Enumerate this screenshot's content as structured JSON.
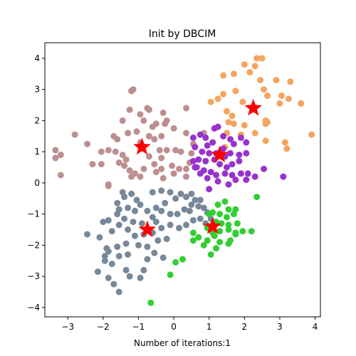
{
  "chart_data": {
    "type": "scatter",
    "title": "Init by DBCIM",
    "xlabel": "Number of iterations:1",
    "ylabel": "",
    "xlim": [
      -3.65,
      4.15
    ],
    "ylim": [
      -4.3,
      4.5
    ],
    "xticks": [
      -3,
      -2,
      -1,
      0,
      1,
      2,
      3,
      4
    ],
    "yticks": [
      -4,
      -3,
      -2,
      -1,
      0,
      1,
      2,
      3,
      4
    ],
    "grid": false,
    "legend": "none",
    "series": [
      {
        "color": "#f4a460",
        "points": [
          [
            2.0,
            3.8
          ],
          [
            2.35,
            4.0
          ],
          [
            2.5,
            4.0
          ],
          [
            1.4,
            3.45
          ],
          [
            1.7,
            3.5
          ],
          [
            2.15,
            3.55
          ],
          [
            2.3,
            3.75
          ],
          [
            2.45,
            3.3
          ],
          [
            2.55,
            3.0
          ],
          [
            2.9,
            3.3
          ],
          [
            3.3,
            3.25
          ],
          [
            1.75,
            2.95
          ],
          [
            1.4,
            2.85
          ],
          [
            1.95,
            2.6
          ],
          [
            2.65,
            2.8
          ],
          [
            3.05,
            2.8
          ],
          [
            3.25,
            2.7
          ],
          [
            3.0,
            2.55
          ],
          [
            3.6,
            2.55
          ],
          [
            1.25,
            2.7
          ],
          [
            1.05,
            2.6
          ],
          [
            1.5,
            2.3
          ],
          [
            1.65,
            2.15
          ],
          [
            1.55,
            1.95
          ],
          [
            1.7,
            1.9
          ],
          [
            1.5,
            1.6
          ],
          [
            2.0,
            1.85
          ],
          [
            1.9,
            1.55
          ],
          [
            2.3,
            1.6
          ],
          [
            2.6,
            1.9
          ],
          [
            2.6,
            2.0
          ],
          [
            2.65,
            1.95
          ],
          [
            1.45,
            1.15
          ],
          [
            2.6,
            1.35
          ],
          [
            3.15,
            1.3
          ],
          [
            3.2,
            1.1
          ],
          [
            3.9,
            1.55
          ]
        ]
      },
      {
        "color": "#bc8f8f",
        "points": [
          [
            -1.2,
            2.95
          ],
          [
            -1.15,
            3.0
          ],
          [
            -1.25,
            2.35
          ],
          [
            -0.7,
            2.35
          ],
          [
            -0.75,
            2.4
          ],
          [
            -0.3,
            2.25
          ],
          [
            0.35,
            2.4
          ],
          [
            -0.95,
            2.2
          ],
          [
            -0.2,
            2.0
          ],
          [
            -0.5,
            1.9
          ],
          [
            -0.85,
            2.0
          ],
          [
            -0.6,
            1.8
          ],
          [
            -1.05,
            1.65
          ],
          [
            -1.45,
            2.0
          ],
          [
            -1.7,
            1.5
          ],
          [
            -1.3,
            1.6
          ],
          [
            -1.6,
            1.4
          ],
          [
            -0.95,
            1.3
          ],
          [
            -0.7,
            1.5
          ],
          [
            -0.55,
            1.4
          ],
          [
            -0.35,
            1.5
          ],
          [
            -0.25,
            1.9
          ],
          [
            0.0,
            1.75
          ],
          [
            -2.8,
            1.55
          ],
          [
            -3.35,
            1.05
          ],
          [
            -2.45,
            1.25
          ],
          [
            -3.2,
            0.9
          ],
          [
            -3.35,
            0.8
          ],
          [
            -2.05,
            1.0
          ],
          [
            -1.85,
            1.05
          ],
          [
            -1.65,
            1.0
          ],
          [
            -1.45,
            0.9
          ],
          [
            -1.35,
            0.75
          ],
          [
            -1.55,
            0.65
          ],
          [
            -1.4,
            0.55
          ],
          [
            -1.25,
            0.4
          ],
          [
            -1.1,
            0.3
          ],
          [
            -0.95,
            0.2
          ],
          [
            -0.85,
            0.45
          ],
          [
            -0.55,
            0.6
          ],
          [
            -0.7,
            0.85
          ],
          [
            -0.4,
            1.05
          ],
          [
            -0.2,
            1.05
          ],
          [
            0.05,
            1.05
          ],
          [
            0.2,
            1.0
          ],
          [
            -0.35,
            0.8
          ],
          [
            -0.5,
            0.35
          ],
          [
            -0.3,
            0.15
          ],
          [
            -0.35,
            0.45
          ],
          [
            -0.05,
            0.55
          ],
          [
            0.0,
            0.3
          ],
          [
            0.15,
            0.45
          ],
          [
            0.35,
            0.45
          ],
          [
            0.45,
            0.65
          ],
          [
            0.5,
            0.95
          ],
          [
            0.55,
            1.25
          ],
          [
            0.35,
            1.6
          ],
          [
            0.85,
            1.6
          ],
          [
            -2.3,
            0.6
          ],
          [
            -2.05,
            0.6
          ],
          [
            -3.2,
            0.25
          ],
          [
            -1.2,
            0.2
          ],
          [
            -1.85,
            -0.05
          ],
          [
            -1.85,
            -0.1
          ],
          [
            0.35,
            0.2
          ]
        ]
      },
      {
        "color": "#9932cc",
        "points": [
          [
            0.55,
            1.45
          ],
          [
            0.75,
            1.55
          ],
          [
            0.9,
            1.45
          ],
          [
            1.15,
            1.75
          ],
          [
            1.25,
            1.8
          ],
          [
            0.95,
            1.2
          ],
          [
            1.1,
            1.3
          ],
          [
            1.4,
            1.5
          ],
          [
            1.6,
            1.4
          ],
          [
            1.7,
            1.25
          ],
          [
            1.9,
            1.45
          ],
          [
            2.05,
            1.3
          ],
          [
            0.6,
            1.15
          ],
          [
            0.8,
            1.0
          ],
          [
            1.0,
            0.95
          ],
          [
            1.2,
            0.95
          ],
          [
            1.45,
            0.85
          ],
          [
            1.6,
            0.95
          ],
          [
            1.85,
            0.9
          ],
          [
            2.05,
            0.95
          ],
          [
            0.55,
            0.7
          ],
          [
            0.7,
            0.75
          ],
          [
            0.9,
            0.7
          ],
          [
            1.15,
            0.75
          ],
          [
            1.3,
            0.6
          ],
          [
            1.5,
            0.5
          ],
          [
            1.65,
            0.6
          ],
          [
            1.85,
            0.7
          ],
          [
            0.65,
            0.5
          ],
          [
            0.85,
            0.4
          ],
          [
            1.05,
            0.35
          ],
          [
            1.2,
            0.25
          ],
          [
            1.45,
            0.3
          ],
          [
            1.65,
            0.25
          ],
          [
            1.9,
            0.3
          ],
          [
            2.1,
            0.3
          ],
          [
            0.95,
            0.15
          ],
          [
            1.25,
            0.05
          ],
          [
            1.55,
            -0.05
          ],
          [
            1.75,
            0.1
          ],
          [
            2.05,
            0.1
          ],
          [
            2.3,
            0.2
          ],
          [
            2.55,
            0.45
          ],
          [
            3.1,
            0.2
          ],
          [
            0.6,
            0.5
          ],
          [
            1.4,
            1.1
          ],
          [
            1.0,
            -0.2
          ],
          [
            0.75,
            0.3
          ]
        ]
      },
      {
        "color": "#778899",
        "points": [
          [
            -1.45,
            -0.3
          ],
          [
            -1.4,
            -0.45
          ],
          [
            -1.2,
            -0.35
          ],
          [
            -1.05,
            -0.55
          ],
          [
            -0.6,
            -0.3
          ],
          [
            -0.35,
            -0.25
          ],
          [
            -0.1,
            -0.3
          ],
          [
            0.2,
            -0.35
          ],
          [
            0.5,
            -0.35
          ],
          [
            -1.6,
            -0.65
          ],
          [
            -1.55,
            -0.85
          ],
          [
            -1.3,
            -0.8
          ],
          [
            -0.95,
            -0.7
          ],
          [
            -0.75,
            -0.9
          ],
          [
            -0.5,
            -0.8
          ],
          [
            -0.25,
            -0.65
          ],
          [
            0.05,
            -0.5
          ],
          [
            0.35,
            -0.45
          ],
          [
            0.6,
            -0.55
          ],
          [
            0.75,
            -0.55
          ],
          [
            -2.0,
            -1.25
          ],
          [
            -1.85,
            -1.2
          ],
          [
            -1.6,
            -1.0
          ],
          [
            -1.4,
            -1.15
          ],
          [
            -1.15,
            -1.25
          ],
          [
            -0.9,
            -1.3
          ],
          [
            -0.6,
            -1.1
          ],
          [
            -0.35,
            -0.9
          ],
          [
            -0.1,
            -1.0
          ],
          [
            0.1,
            -1.0
          ],
          [
            0.3,
            -0.85
          ],
          [
            0.5,
            -0.7
          ],
          [
            0.7,
            -0.75
          ],
          [
            0.85,
            -0.8
          ],
          [
            0.95,
            -0.95
          ],
          [
            -2.45,
            -1.65
          ],
          [
            -2.1,
            -1.75
          ],
          [
            -1.75,
            -1.55
          ],
          [
            -1.55,
            -1.35
          ],
          [
            -1.3,
            -1.5
          ],
          [
            -1.1,
            -1.7
          ],
          [
            -0.85,
            -1.65
          ],
          [
            -0.6,
            -1.6
          ],
          [
            -0.35,
            -1.45
          ],
          [
            -0.1,
            -1.35
          ],
          [
            0.15,
            -1.45
          ],
          [
            0.35,
            -1.35
          ],
          [
            0.55,
            -1.2
          ],
          [
            0.75,
            -1.15
          ],
          [
            0.9,
            -1.3
          ],
          [
            1.05,
            -1.15
          ],
          [
            -1.9,
            -2.1
          ],
          [
            -1.85,
            -2.2
          ],
          [
            -1.6,
            -2.05
          ],
          [
            -1.35,
            -1.95
          ],
          [
            -1.3,
            -2.3
          ],
          [
            -1.0,
            -2.0
          ],
          [
            -0.75,
            -2.05
          ],
          [
            -0.45,
            -1.85
          ],
          [
            -0.2,
            -1.8
          ],
          [
            -2.15,
            -2.85
          ],
          [
            -1.95,
            -2.5
          ],
          [
            -1.75,
            -2.6
          ],
          [
            -1.55,
            -2.35
          ],
          [
            -1.85,
            -3.05
          ],
          [
            -1.7,
            -3.25
          ],
          [
            -1.55,
            -3.5
          ],
          [
            -1.35,
            -2.8
          ],
          [
            -1.25,
            -3.0
          ],
          [
            -0.85,
            -2.8
          ],
          [
            -0.75,
            -2.45
          ],
          [
            -0.55,
            -2.25
          ],
          [
            -0.3,
            -2.4
          ],
          [
            -0.95,
            -3.05
          ],
          [
            -1.95,
            -2.35
          ],
          [
            -1.1,
            -0.9
          ],
          [
            0.45,
            -0.9
          ],
          [
            -0.5,
            -1.25
          ]
        ]
      },
      {
        "color": "#32cd32",
        "points": [
          [
            1.25,
            -0.7
          ],
          [
            1.45,
            -0.6
          ],
          [
            1.55,
            -0.85
          ],
          [
            1.75,
            -0.85
          ],
          [
            1.1,
            -0.95
          ],
          [
            1.3,
            -1.0
          ],
          [
            1.5,
            -1.1
          ],
          [
            1.7,
            -1.0
          ],
          [
            1.2,
            -1.25
          ],
          [
            1.35,
            -1.3
          ],
          [
            1.55,
            -1.35
          ],
          [
            1.8,
            -1.3
          ],
          [
            0.95,
            -1.45
          ],
          [
            1.1,
            -1.6
          ],
          [
            1.3,
            -1.55
          ],
          [
            1.55,
            -1.5
          ],
          [
            1.75,
            -1.6
          ],
          [
            1.95,
            -1.55
          ],
          [
            2.2,
            -1.55
          ],
          [
            0.55,
            -1.6
          ],
          [
            0.7,
            -1.75
          ],
          [
            0.95,
            -1.85
          ],
          [
            1.15,
            -1.7
          ],
          [
            1.3,
            -1.9
          ],
          [
            1.6,
            -1.85
          ],
          [
            1.75,
            -1.65
          ],
          [
            0.55,
            -1.85
          ],
          [
            0.85,
            -2.0
          ],
          [
            1.2,
            -2.1
          ],
          [
            1.55,
            -1.95
          ],
          [
            0.25,
            -2.45
          ],
          [
            0.05,
            -2.55
          ],
          [
            -0.1,
            -2.95
          ],
          [
            -0.65,
            -3.85
          ],
          [
            1.05,
            -2.3
          ],
          [
            2.35,
            -0.45
          ],
          [
            1.0,
            -1.0
          ]
        ]
      }
    ],
    "centroids": {
      "color": "#ff0000",
      "points": [
        [
          2.25,
          2.4
        ],
        [
          -0.9,
          1.15
        ],
        [
          1.3,
          0.9
        ],
        [
          -0.75,
          -1.5
        ],
        [
          1.1,
          -1.4
        ]
      ]
    }
  }
}
